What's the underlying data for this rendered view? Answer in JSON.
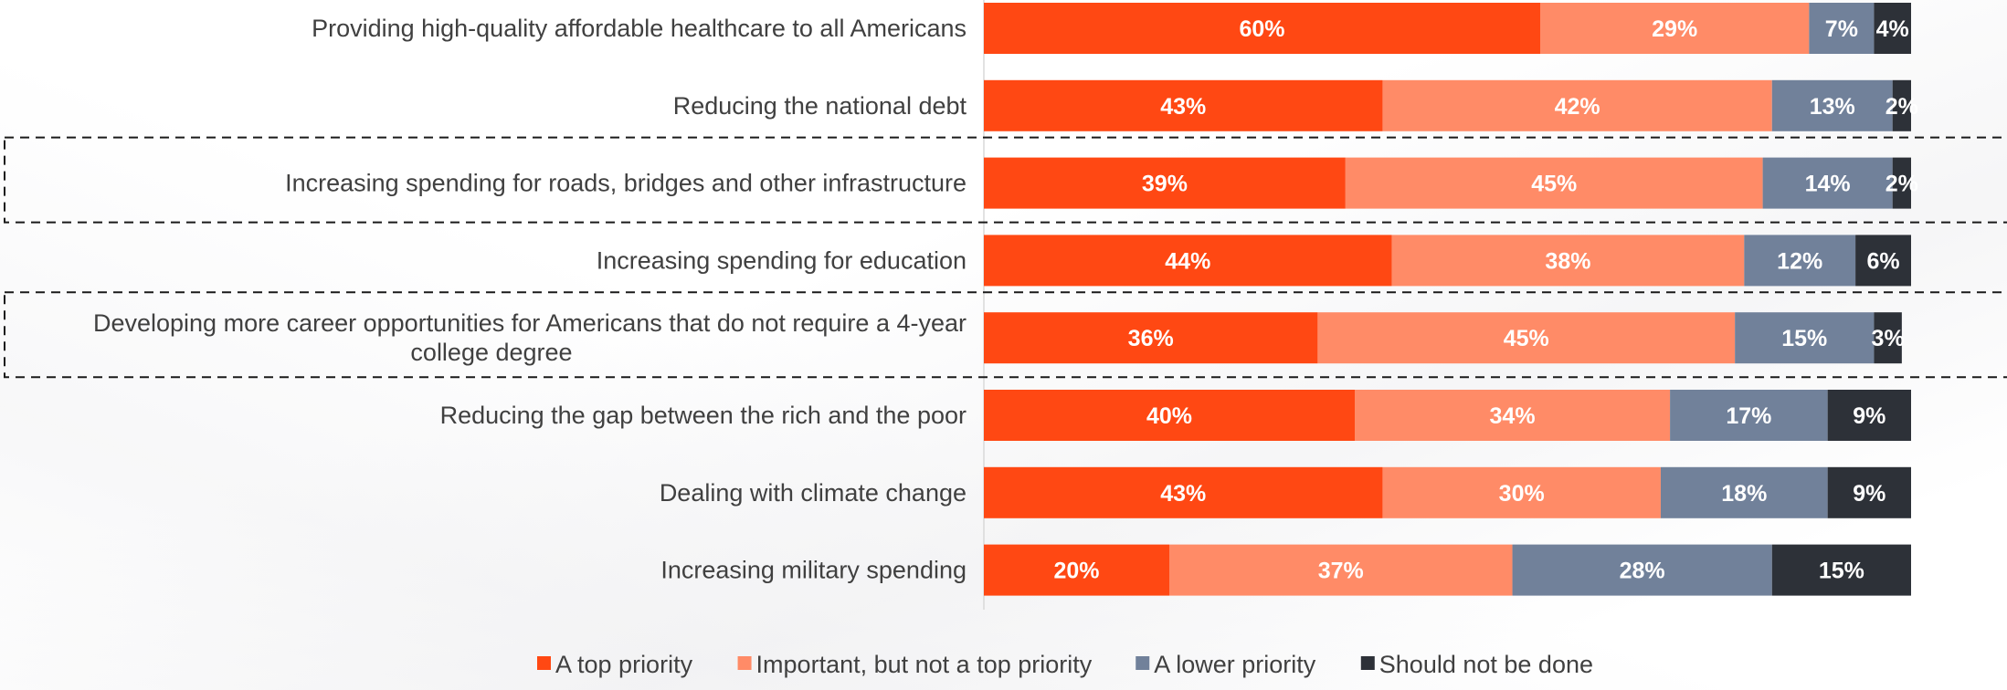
{
  "chart_data": {
    "type": "bar",
    "orientation": "horizontal",
    "stacked": true,
    "title": "",
    "xlabel": "",
    "ylabel": "",
    "xlim": [
      0,
      100
    ],
    "grid": false,
    "legend_position": "bottom",
    "categories": [
      "Providing high-quality affordable healthcare to all Americans",
      "Reducing the national debt",
      "Increasing spending for roads, bridges and other infrastructure",
      "Increasing spending for education",
      "Developing more career opportunities for Americans that do not require a 4-year college degree",
      "Reducing the gap between the rich and the poor",
      "Dealing with climate change",
      "Increasing military spending"
    ],
    "series": [
      {
        "name": "A top priority",
        "color": "#FF4813",
        "values": [
          60,
          43,
          39,
          44,
          36,
          40,
          43,
          20
        ]
      },
      {
        "name": "Important, but not a top priority",
        "color": "#FF8B67",
        "values": [
          29,
          42,
          45,
          38,
          45,
          34,
          30,
          37
        ]
      },
      {
        "name": "A lower priority",
        "color": "#71819A",
        "values": [
          7,
          13,
          14,
          12,
          15,
          17,
          18,
          28
        ]
      },
      {
        "name": "Should not be done",
        "color": "#2D3138",
        "values": [
          4,
          2,
          2,
          6,
          3,
          9,
          9,
          15
        ]
      }
    ],
    "data_labels": [
      [
        "60%",
        "29%",
        "7%",
        "4%"
      ],
      [
        "43%",
        "42%",
        "13%",
        "2%"
      ],
      [
        "39%",
        "45%",
        "14%",
        "2%"
      ],
      [
        "44%",
        "38%",
        "12%",
        "6%"
      ],
      [
        "36%",
        "45%",
        "15%",
        "3%"
      ],
      [
        "40%",
        "34%",
        "17%",
        "9%"
      ],
      [
        "43%",
        "30%",
        "18%",
        "9%"
      ],
      [
        "20%",
        "37%",
        "28%",
        "15%"
      ]
    ],
    "highlighted_categories": [
      2,
      4
    ]
  }
}
